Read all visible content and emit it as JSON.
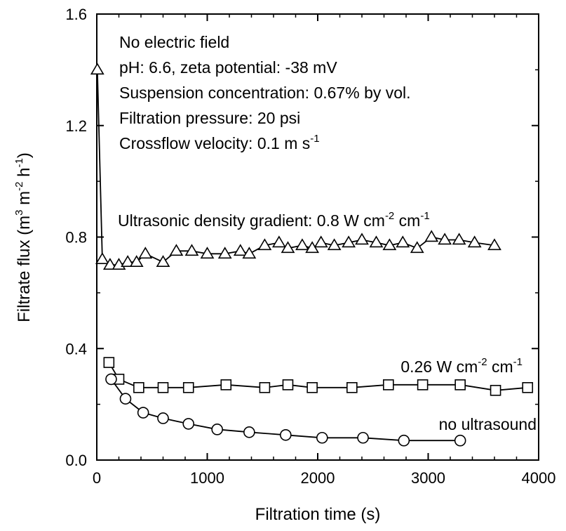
{
  "chart_data": {
    "type": "scatter",
    "title": "",
    "xlabel": "Filtration time (s)",
    "ylabel": {
      "text": "Filtrate flux (m",
      "parts": [
        {
          "t": "Filtrate flux (m",
          "sup": false
        },
        {
          "t": "3",
          "sup": true
        },
        {
          "t": " m",
          "sup": false
        },
        {
          "t": "-2",
          "sup": true
        },
        {
          "t": " h",
          "sup": false
        },
        {
          "t": "-1",
          "sup": true
        },
        {
          "t": ")",
          "sup": false
        }
      ]
    },
    "xlim": [
      0,
      4000
    ],
    "ylim": [
      0.0,
      1.6
    ],
    "xticks": [
      0,
      1000,
      2000,
      3000,
      4000
    ],
    "xtick_labels": [
      "0",
      "1000",
      "2000",
      "3000",
      "4000"
    ],
    "yticks": [
      0.0,
      0.4,
      0.8,
      1.2,
      1.6
    ],
    "ytick_labels": [
      "0.0",
      "0.4",
      "0.8",
      "1.2",
      "1.6"
    ],
    "grid": false,
    "annotations": {
      "conditions": [
        {
          "parts": [
            {
              "t": "No electric field",
              "sup": false
            }
          ]
        },
        {
          "parts": [
            {
              "t": "pH: 6.6, zeta potential: -38 mV",
              "sup": false
            }
          ]
        },
        {
          "parts": [
            {
              "t": "Suspension concentration: 0.67% by vol.",
              "sup": false
            }
          ]
        },
        {
          "parts": [
            {
              "t": "Filtration pressure: 20 psi",
              "sup": false
            }
          ]
        },
        {
          "parts": [
            {
              "t": "Crossflow velocity: 0.1 m s",
              "sup": false
            },
            {
              "t": "-1",
              "sup": true
            }
          ]
        }
      ],
      "series_labels": [
        {
          "parts": [
            {
              "t": "Ultrasonic density gradient: 0.8 W cm",
              "sup": false
            },
            {
              "t": "-2",
              "sup": true
            },
            {
              "t": " cm",
              "sup": false
            },
            {
              "t": "-1",
              "sup": true
            }
          ]
        },
        {
          "parts": [
            {
              "t": "0.26 W cm",
              "sup": false
            },
            {
              "t": "-2",
              "sup": true
            },
            {
              "t": " cm",
              "sup": false
            },
            {
              "t": "-1",
              "sup": true
            }
          ]
        },
        {
          "parts": [
            {
              "t": "no ultrasound",
              "sup": false
            }
          ]
        }
      ]
    },
    "series": [
      {
        "marker": "triangle",
        "x": [
          5,
          50,
          120,
          200,
          280,
          360,
          440,
          600,
          720,
          860,
          1000,
          1160,
          1300,
          1380,
          1520,
          1650,
          1730,
          1860,
          1950,
          2030,
          2150,
          2280,
          2400,
          2530,
          2650,
          2770,
          2900,
          3030,
          3150,
          3280,
          3420,
          3600
        ],
        "y": [
          1.4,
          0.72,
          0.7,
          0.7,
          0.71,
          0.71,
          0.74,
          0.71,
          0.75,
          0.75,
          0.74,
          0.74,
          0.75,
          0.74,
          0.77,
          0.78,
          0.76,
          0.77,
          0.76,
          0.78,
          0.77,
          0.78,
          0.79,
          0.78,
          0.77,
          0.78,
          0.76,
          0.8,
          0.79,
          0.79,
          0.78,
          0.77
        ]
      },
      {
        "marker": "square",
        "x": [
          110,
          200,
          380,
          600,
          830,
          1170,
          1520,
          1730,
          1950,
          2310,
          2640,
          2950,
          3290,
          3610,
          3900
        ],
        "y": [
          0.35,
          0.29,
          0.26,
          0.26,
          0.26,
          0.27,
          0.26,
          0.27,
          0.26,
          0.26,
          0.27,
          0.27,
          0.27,
          0.25,
          0.26
        ]
      },
      {
        "marker": "circle",
        "x": [
          130,
          260,
          420,
          600,
          830,
          1090,
          1380,
          1710,
          2040,
          2410,
          2780,
          3290
        ],
        "y": [
          0.29,
          0.22,
          0.17,
          0.15,
          0.13,
          0.11,
          0.1,
          0.09,
          0.08,
          0.08,
          0.07,
          0.07
        ]
      }
    ]
  }
}
